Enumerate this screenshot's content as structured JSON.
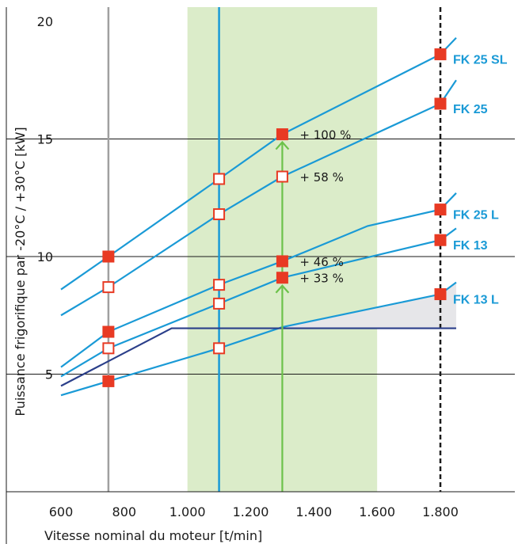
{
  "chart_data": {
    "type": "line",
    "xlabel": "Vitesse nominal du moteur [t/min]",
    "ylabel": "Puissance frigorifique par -20°C / +30°C [kW]",
    "xlim": [
      450,
      1850
    ],
    "ylim": [
      0,
      20.5
    ],
    "x_ticks": [
      {
        "value": 600,
        "label": "600"
      },
      {
        "value": 800,
        "label": "800"
      },
      {
        "value": 1000,
        "label": "1.000"
      },
      {
        "value": 1200,
        "label": "1.200"
      },
      {
        "value": 1400,
        "label": "1.400"
      },
      {
        "value": 1600,
        "label": "1.600"
      },
      {
        "value": 1800,
        "label": "1.800"
      }
    ],
    "y_ticks": [
      {
        "value": 5,
        "label": "5"
      },
      {
        "value": 10,
        "label": "10"
      },
      {
        "value": 15,
        "label": "15"
      },
      {
        "value": 20,
        "label": "20"
      }
    ],
    "gridlines_y": [
      5,
      10,
      15
    ],
    "highlight_band_x": [
      1000,
      1600
    ],
    "vlines": [
      {
        "x": 750,
        "style": "solid",
        "color": "#a0a0a0"
      },
      {
        "x": 1100,
        "style": "solid",
        "color": "#1a9ad6"
      },
      {
        "x": 1800,
        "style": "dashed",
        "color": "#1a1a1a"
      }
    ],
    "series": [
      {
        "name": "FK 25 SL",
        "x": [
          600,
          750,
          1100,
          1300,
          1800,
          1850
        ],
        "values": [
          8.6,
          10.0,
          13.3,
          15.2,
          18.6,
          19.3
        ]
      },
      {
        "name": "FK 25",
        "x": [
          600,
          750,
          1100,
          1300,
          1800,
          1850
        ],
        "values": [
          7.5,
          8.7,
          11.8,
          13.4,
          16.5,
          17.5
        ]
      },
      {
        "name": "FK 25 L",
        "x": [
          600,
          750,
          1100,
          1300,
          1570,
          1800,
          1850
        ],
        "values": [
          5.3,
          6.8,
          8.8,
          9.8,
          11.3,
          12.0,
          12.7
        ]
      },
      {
        "name": "FK 13",
        "x": [
          600,
          750,
          1100,
          1300,
          1800,
          1850
        ],
        "values": [
          4.9,
          6.1,
          8.0,
          9.1,
          10.7,
          11.2
        ]
      },
      {
        "name": "FK 13 L",
        "x": [
          600,
          750,
          1100,
          1300,
          1800,
          1850
        ],
        "values": [
          4.1,
          4.7,
          6.1,
          7.0,
          8.4,
          8.9
        ]
      },
      {
        "name": "",
        "x": [
          600,
          950,
          1850
        ],
        "values": [
          4.5,
          6.95,
          6.95
        ],
        "color": "#2b3f8a"
      }
    ],
    "markers": [
      {
        "series": "FK 25 SL",
        "x": 750,
        "y": 10.0,
        "fill": "filled"
      },
      {
        "series": "FK 25 SL",
        "x": 1100,
        "y": 13.3,
        "fill": "open"
      },
      {
        "series": "FK 25 SL",
        "x": 1300,
        "y": 15.2,
        "fill": "filled"
      },
      {
        "series": "FK 25 SL",
        "x": 1800,
        "y": 18.6,
        "fill": "filled"
      },
      {
        "series": "FK 25",
        "x": 750,
        "y": 8.7,
        "fill": "open"
      },
      {
        "series": "FK 25",
        "x": 1100,
        "y": 11.8,
        "fill": "open"
      },
      {
        "series": "FK 25",
        "x": 1300,
        "y": 13.4,
        "fill": "open"
      },
      {
        "series": "FK 25",
        "x": 1800,
        "y": 16.5,
        "fill": "filled"
      },
      {
        "series": "FK 25 L",
        "x": 750,
        "y": 6.8,
        "fill": "filled"
      },
      {
        "series": "FK 25 L",
        "x": 1100,
        "y": 8.8,
        "fill": "open"
      },
      {
        "series": "FK 25 L",
        "x": 1300,
        "y": 9.8,
        "fill": "filled"
      },
      {
        "series": "FK 25 L",
        "x": 1800,
        "y": 12.0,
        "fill": "filled"
      },
      {
        "series": "FK 13",
        "x": 750,
        "y": 6.1,
        "fill": "open"
      },
      {
        "series": "FK 13",
        "x": 1100,
        "y": 8.0,
        "fill": "open"
      },
      {
        "series": "FK 13",
        "x": 1300,
        "y": 9.1,
        "fill": "filled"
      },
      {
        "series": "FK 13",
        "x": 1800,
        "y": 10.7,
        "fill": "filled"
      },
      {
        "series": "FK 13 L",
        "x": 750,
        "y": 4.7,
        "fill": "filled"
      },
      {
        "series": "FK 13 L",
        "x": 1100,
        "y": 6.1,
        "fill": "open"
      },
      {
        "series": "FK 13 L",
        "x": 1800,
        "y": 8.4,
        "fill": "filled"
      }
    ],
    "arrows": [
      {
        "x": 1300,
        "from": 0,
        "to": 9.1
      },
      {
        "x": 1300,
        "from": 9.1,
        "to": 15.2
      }
    ],
    "annotations": [
      {
        "text": "+ 100 %",
        "x": 1300,
        "y": 15.2
      },
      {
        "text": "+ 58 %",
        "x": 1300,
        "y": 13.4
      },
      {
        "text": "+ 46 %",
        "x": 1300,
        "y": 9.8
      },
      {
        "text": "+ 33 %",
        "x": 1300,
        "y": 9.1
      }
    ],
    "shaded_region": {
      "between": [
        "FK 13 L",
        ""
      ],
      "x_from": 1300,
      "x_to": 1850,
      "color": "#e6e6e9"
    },
    "colors": {
      "line": "#1a9ad6",
      "label": "#1a9ad6",
      "marker": "#e83a23",
      "band": "#dbecc9",
      "arrow": "#6cc24a",
      "grid": "#1a1a1a"
    }
  }
}
